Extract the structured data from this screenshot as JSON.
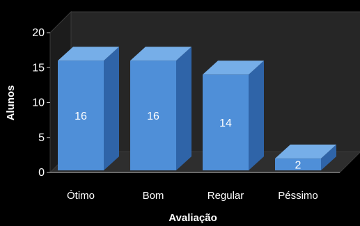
{
  "chart_data": {
    "type": "bar",
    "categories": [
      "Ótimo",
      "Bom",
      "Regular",
      "Péssimo"
    ],
    "values": [
      16,
      16,
      14,
      2
    ],
    "data_labels": [
      "16",
      "16",
      "14",
      "2"
    ],
    "title": "",
    "xlabel": "Avaliação",
    "ylabel": "Alunos",
    "ylim": [
      0,
      20
    ],
    "yticks": [
      "0",
      "5",
      "10",
      "15",
      "20"
    ],
    "grid": false,
    "legend": "none",
    "style": "3d-column",
    "colors": {
      "background": "#000000",
      "wall": "#262626",
      "bar_front": "#4f8fd8",
      "bar_top": "#76aee8",
      "bar_side": "#2f64a8",
      "text": "#ffffff"
    }
  }
}
